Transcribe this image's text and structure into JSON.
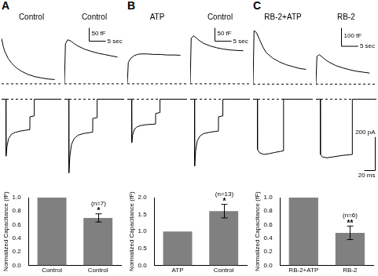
{
  "chart_data": [
    {
      "type": "line",
      "panel": "A",
      "title": "Control",
      "x": [
        0,
        0.5,
        1,
        2,
        3,
        4,
        5,
        6,
        8,
        10,
        12,
        14,
        16
      ],
      "values": [
        170,
        140,
        120,
        95,
        78,
        65,
        55,
        47,
        35,
        27,
        22,
        18,
        16
      ],
      "xlim": [
        0,
        18
      ],
      "ylim": [
        -15,
        220
      ],
      "baseline": 0,
      "color": "#000000",
      "line_style": "solid",
      "grid": false,
      "tick_labels": false
    },
    {
      "type": "line",
      "panel": "A",
      "title": "Control",
      "x": [
        0,
        0.3,
        1,
        2,
        3,
        4,
        6,
        8,
        10,
        12,
        14,
        16
      ],
      "values": [
        0,
        150,
        165,
        160,
        150,
        142,
        130,
        122,
        115,
        110,
        105,
        100
      ],
      "xlim": [
        0,
        18
      ],
      "ylim": [
        -15,
        220
      ],
      "baseline": 0,
      "color": "#000000",
      "line_style": "solid",
      "grid": false,
      "tick_labels": false,
      "scale_bar": {
        "x": {
          "value": 5,
          "label": "5 sec"
        },
        "y": {
          "value": 50,
          "label": "50 fF"
        }
      }
    },
    {
      "type": "line",
      "panel": "A",
      "x": [
        0,
        8,
        8.2,
        10,
        13,
        18,
        25,
        35,
        45,
        52,
        52.2,
        60,
        60.2,
        110
      ],
      "values": [
        0,
        0,
        -340,
        -280,
        -235,
        -210,
        -198,
        -190,
        -185,
        -182,
        -105,
        -100,
        0,
        0
      ],
      "xlim": [
        0,
        110
      ],
      "ylim": [
        -480,
        40
      ],
      "baseline": 0,
      "color": "#000000",
      "line_style": "solid",
      "grid": false,
      "tick_labels": false
    },
    {
      "type": "line",
      "panel": "A",
      "x": [
        0,
        8,
        8.2,
        10,
        13,
        18,
        25,
        35,
        45,
        52,
        52.2,
        60,
        60.2,
        110
      ],
      "values": [
        0,
        0,
        -440,
        -340,
        -270,
        -235,
        -215,
        -205,
        -200,
        -197,
        -115,
        -110,
        0,
        0
      ],
      "xlim": [
        0,
        110
      ],
      "ylim": [
        -480,
        40
      ],
      "baseline": 0,
      "color": "#000000",
      "line_style": "solid",
      "grid": false,
      "tick_labels": false
    },
    {
      "type": "bar",
      "panel": "A",
      "categories": [
        "Control",
        "Control"
      ],
      "values": [
        1.0,
        0.7
      ],
      "errors": [
        null,
        0.06
      ],
      "significance": [
        null,
        "*"
      ],
      "n_labels": [
        null,
        "(n=7)"
      ],
      "color": "#808080",
      "ylim": [
        0,
        1.0
      ],
      "yticks": [
        {
          "value": 0,
          "label": "0.0"
        },
        {
          "value": 0.2,
          "label": "0.2"
        },
        {
          "value": 0.4,
          "label": "0.4"
        },
        {
          "value": 0.6,
          "label": "0.6"
        },
        {
          "value": 0.8,
          "label": "0.8"
        },
        {
          "value": 1.0,
          "label": "1.0"
        }
      ],
      "y_label": "Normalized Capacitance (fF)",
      "grid": false
    },
    {
      "type": "line",
      "panel": "B",
      "title": "ATP",
      "x": [
        0,
        0.3,
        1,
        2,
        3,
        4,
        6,
        8,
        10,
        12,
        14,
        16
      ],
      "values": [
        0,
        80,
        95,
        105,
        110,
        112,
        112,
        110,
        110,
        108,
        108,
        107
      ],
      "xlim": [
        0,
        18
      ],
      "ylim": [
        -15,
        220
      ],
      "baseline": 0,
      "color": "#000000",
      "line_style": "solid",
      "grid": false,
      "tick_labels": false
    },
    {
      "type": "line",
      "panel": "B",
      "title": "Control",
      "x": [
        0,
        0.3,
        1,
        2,
        3,
        4,
        6,
        8,
        10,
        12,
        14,
        16
      ],
      "values": [
        0,
        170,
        180,
        170,
        160,
        152,
        142,
        135,
        130,
        127,
        125,
        124
      ],
      "xlim": [
        0,
        18
      ],
      "ylim": [
        -15,
        220
      ],
      "baseline": 0,
      "color": "#000000",
      "line_style": "solid",
      "grid": false,
      "tick_labels": false,
      "scale_bar": {
        "x": {
          "value": 5,
          "label": "5 sec"
        },
        "y": {
          "value": 50,
          "label": "50 fF"
        }
      }
    },
    {
      "type": "line",
      "panel": "B",
      "x": [
        0,
        8,
        8.2,
        10,
        13,
        18,
        25,
        35,
        45,
        52,
        52.2,
        60,
        60.2,
        110
      ],
      "values": [
        0,
        0,
        -260,
        -210,
        -180,
        -165,
        -157,
        -152,
        -150,
        -148,
        -85,
        -80,
        0,
        0
      ],
      "xlim": [
        0,
        110
      ],
      "ylim": [
        -480,
        40
      ],
      "baseline": 0,
      "color": "#000000",
      "line_style": "solid",
      "grid": false,
      "tick_labels": false
    },
    {
      "type": "line",
      "panel": "B",
      "x": [
        0,
        8,
        8.2,
        10,
        13,
        18,
        25,
        35,
        45,
        52,
        52.2,
        60,
        60.2,
        110
      ],
      "values": [
        0,
        0,
        -400,
        -310,
        -250,
        -220,
        -205,
        -198,
        -193,
        -190,
        -105,
        -100,
        0,
        0
      ],
      "xlim": [
        0,
        110
      ],
      "ylim": [
        -480,
        40
      ],
      "baseline": 0,
      "color": "#000000",
      "line_style": "solid",
      "grid": false,
      "tick_labels": false
    },
    {
      "type": "bar",
      "panel": "B",
      "categories": [
        "ATP",
        "Control"
      ],
      "values": [
        1.0,
        1.6
      ],
      "errors": [
        null,
        0.2
      ],
      "significance": [
        null,
        "*"
      ],
      "n_labels": [
        null,
        "(n=13)"
      ],
      "color": "#808080",
      "ylim": [
        0,
        2.0
      ],
      "yticks": [
        {
          "value": 0,
          "label": "0.0"
        },
        {
          "value": 0.5,
          "label": "0.5"
        },
        {
          "value": 1.0,
          "label": "1.0"
        },
        {
          "value": 1.5,
          "label": "1.5"
        },
        {
          "value": 2.0,
          "label": "2.0"
        }
      ],
      "y_label": "Normalized Capacitance (fF)",
      "grid": false
    },
    {
      "type": "line",
      "panel": "C",
      "title": "RB-2+ATP",
      "x": [
        0,
        0.3,
        1,
        2,
        3,
        4,
        6,
        8,
        10,
        12,
        14,
        16
      ],
      "values": [
        0,
        290,
        280,
        240,
        200,
        170,
        140,
        120,
        105,
        95,
        85,
        80
      ],
      "xlim": [
        0,
        18
      ],
      "ylim": [
        -20,
        320
      ],
      "baseline": 0,
      "color": "#000000",
      "line_style": "solid",
      "grid": false,
      "tick_labels": false
    },
    {
      "type": "line",
      "panel": "C",
      "title": "RB-2",
      "x": [
        0,
        0.3,
        1,
        2,
        3,
        4,
        6,
        8,
        10,
        12,
        14,
        16
      ],
      "values": [
        0,
        150,
        160,
        145,
        130,
        118,
        100,
        88,
        78,
        70,
        65,
        60
      ],
      "xlim": [
        0,
        18
      ],
      "ylim": [
        -20,
        320
      ],
      "baseline": 0,
      "color": "#000000",
      "line_style": "solid",
      "grid": false,
      "tick_labels": false,
      "scale_bar": {
        "x": {
          "value": 5,
          "label": "5 sec"
        },
        "y": {
          "value": 100,
          "label": "100 fF"
        }
      }
    },
    {
      "type": "line",
      "panel": "C",
      "x": [
        0,
        8,
        8.2,
        12,
        20,
        30,
        40,
        50,
        56,
        56.2,
        110
      ],
      "values": [
        0,
        0,
        -300,
        -320,
        -330,
        -325,
        -318,
        -312,
        -308,
        0,
        0
      ],
      "xlim": [
        0,
        110
      ],
      "ylim": [
        -480,
        40
      ],
      "baseline": 0,
      "color": "#000000",
      "line_style": "solid",
      "grid": false,
      "tick_labels": false
    },
    {
      "type": "line",
      "panel": "C",
      "x": [
        0,
        8,
        8.2,
        12,
        20,
        30,
        40,
        50,
        60,
        66,
        66.2,
        110
      ],
      "values": [
        0,
        0,
        -330,
        -345,
        -350,
        -345,
        -340,
        -335,
        -332,
        -330,
        0,
        0
      ],
      "xlim": [
        0,
        110
      ],
      "ylim": [
        -480,
        40
      ],
      "baseline": 0,
      "color": "#000000",
      "line_style": "solid",
      "grid": false,
      "tick_labels": false,
      "scale_bar": {
        "x": {
          "value": 20,
          "label": "20 ms"
        },
        "y": {
          "value": 200,
          "label": "200 pA"
        }
      }
    },
    {
      "type": "bar",
      "panel": "C",
      "categories": [
        "RB-2+ATP",
        "RB-2"
      ],
      "values": [
        1.0,
        0.48
      ],
      "errors": [
        null,
        0.1
      ],
      "significance": [
        null,
        "**"
      ],
      "n_labels": [
        null,
        "(n=6)"
      ],
      "color": "#808080",
      "ylim": [
        0,
        1.0
      ],
      "yticks": [
        {
          "value": 0,
          "label": "0.0"
        },
        {
          "value": 0.2,
          "label": "0.2"
        },
        {
          "value": 0.4,
          "label": "0.4"
        },
        {
          "value": 0.6,
          "label": "0.6"
        },
        {
          "value": 0.8,
          "label": "0.8"
        },
        {
          "value": 1.0,
          "label": "1.0"
        }
      ],
      "y_label": "Normalized Capacitance (fF)",
      "grid": false
    }
  ]
}
